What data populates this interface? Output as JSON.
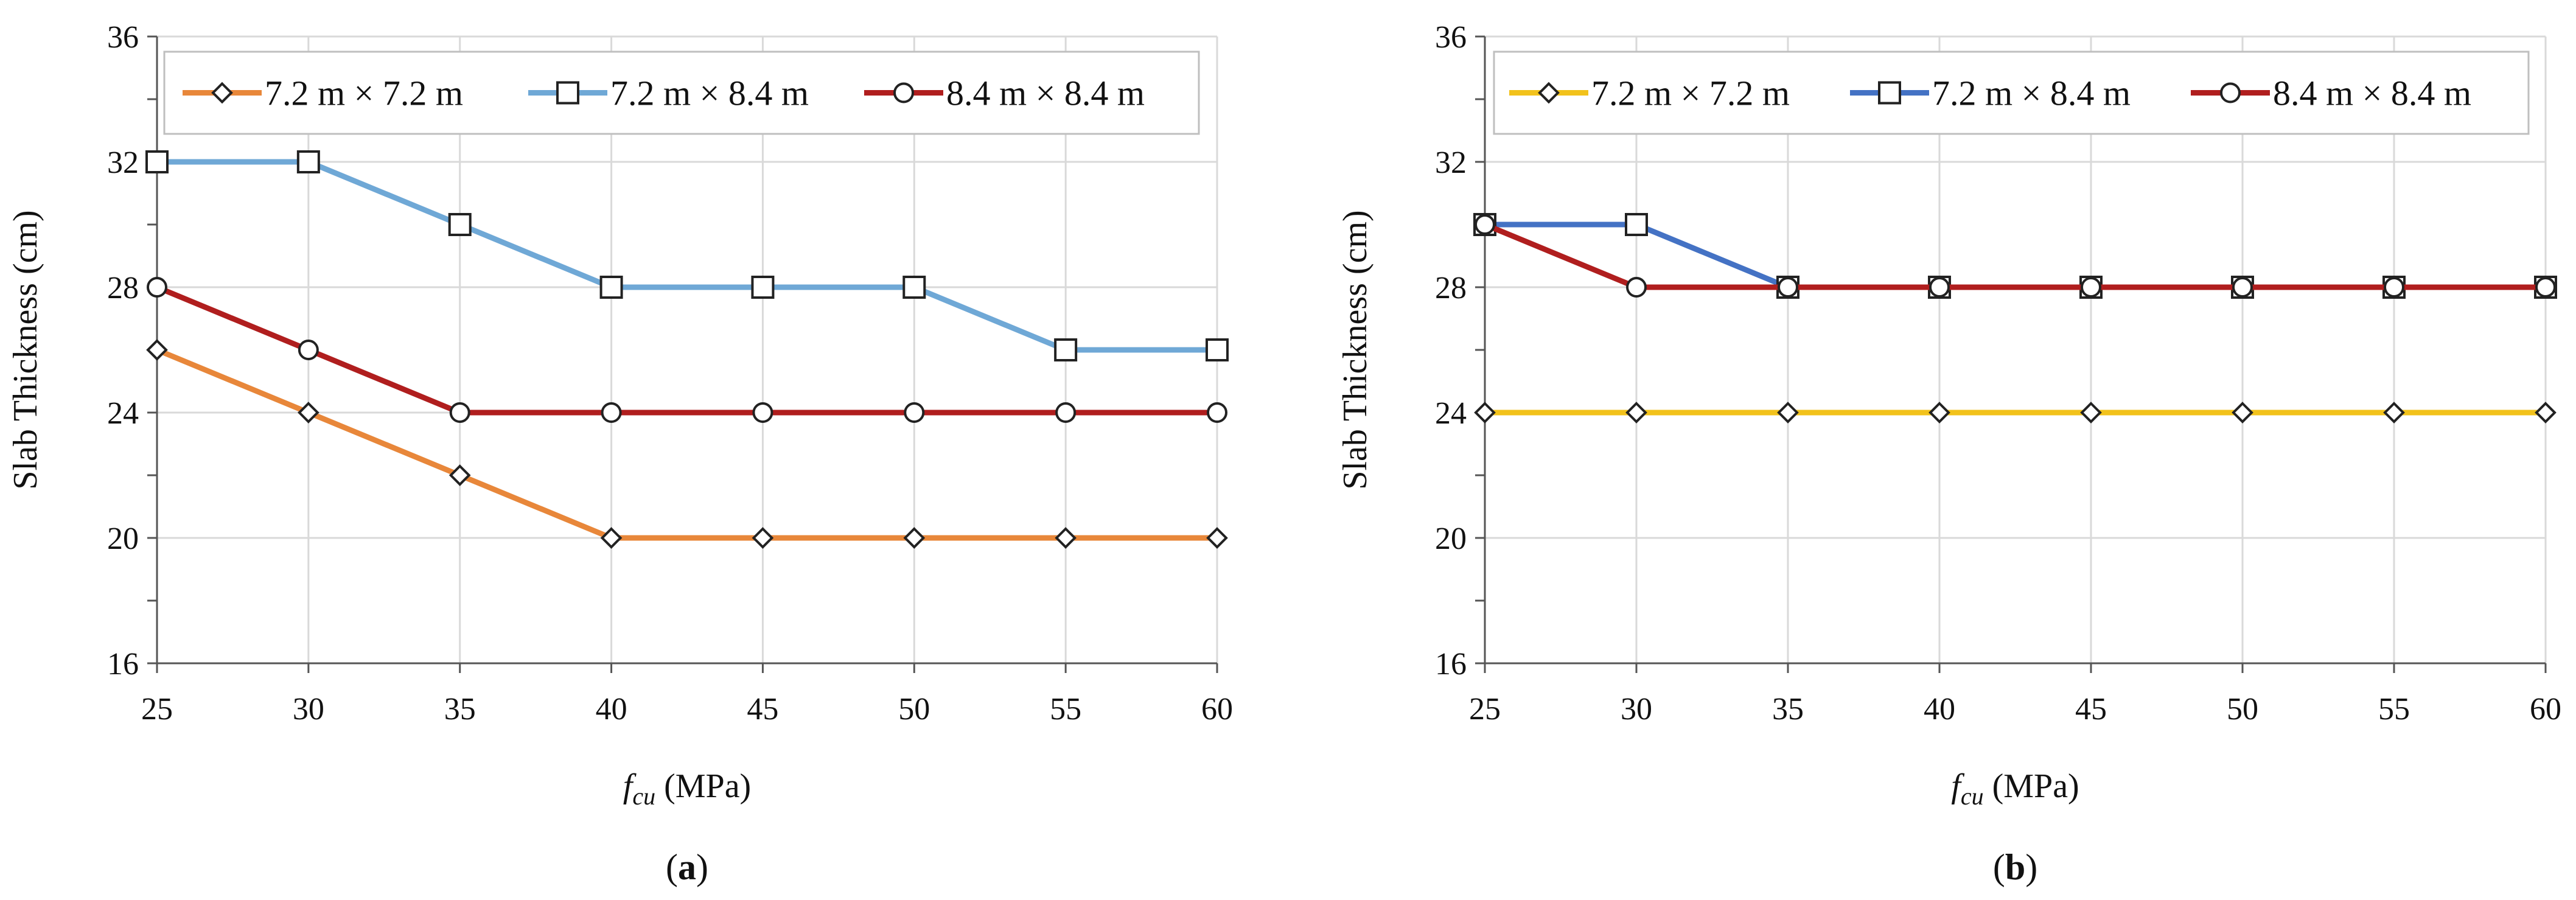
{
  "chart_data": [
    {
      "type": "line",
      "panel_label_prefix": "(",
      "panel_label_letter": "a",
      "panel_label_suffix": ")",
      "xlabel_main": "f",
      "xlabel_sub": "cu",
      "xlabel_rest": " (MPa)",
      "ylabel": "Slab Thickness (cm)",
      "x": [
        25,
        30,
        35,
        40,
        45,
        50,
        55,
        60
      ],
      "xlim": [
        25,
        60
      ],
      "ylim": [
        16,
        36
      ],
      "xticks": [
        "25",
        "30",
        "35",
        "40",
        "45",
        "50",
        "55",
        "60"
      ],
      "yticks": [
        "16",
        "20",
        "24",
        "28",
        "32",
        "36"
      ],
      "grid": true,
      "legend_position": "top",
      "series": [
        {
          "name": "7.2 m × 7.2 m",
          "color": "#E8873A",
          "marker": "diamond",
          "values": [
            26,
            24,
            22,
            20,
            20,
            20,
            20,
            20
          ]
        },
        {
          "name": "7.2 m × 8.4 m",
          "color": "#6FA8D6",
          "marker": "square",
          "values": [
            32,
            32,
            30,
            28,
            28,
            28,
            26,
            26
          ]
        },
        {
          "name": "8.4 m × 8.4 m",
          "color": "#B01E1E",
          "marker": "circle",
          "values": [
            28,
            26,
            24,
            24,
            24,
            24,
            24,
            24
          ]
        }
      ]
    },
    {
      "type": "line",
      "panel_label_prefix": "(",
      "panel_label_letter": "b",
      "panel_label_suffix": ")",
      "xlabel_main": "f",
      "xlabel_sub": "cu",
      "xlabel_rest": " (MPa)",
      "ylabel": "Slab Thickness (cm)",
      "x": [
        25,
        30,
        35,
        40,
        45,
        50,
        55,
        60
      ],
      "xlim": [
        25,
        60
      ],
      "ylim": [
        16,
        36
      ],
      "xticks": [
        "25",
        "30",
        "35",
        "40",
        "45",
        "50",
        "55",
        "60"
      ],
      "yticks": [
        "16",
        "20",
        "24",
        "28",
        "32",
        "36"
      ],
      "grid": true,
      "legend_position": "top",
      "series": [
        {
          "name": "7.2 m × 7.2 m",
          "color": "#F2C21B",
          "marker": "diamond",
          "values": [
            24,
            24,
            24,
            24,
            24,
            24,
            24,
            24
          ]
        },
        {
          "name": "7.2 m × 8.4 m",
          "color": "#4472C4",
          "marker": "square",
          "values": [
            30,
            30,
            28,
            28,
            28,
            28,
            28,
            28
          ]
        },
        {
          "name": "8.4 m × 8.4 m",
          "color": "#B01E1E",
          "marker": "circle",
          "values": [
            30,
            28,
            28,
            28,
            28,
            28,
            28,
            28
          ]
        }
      ]
    }
  ]
}
